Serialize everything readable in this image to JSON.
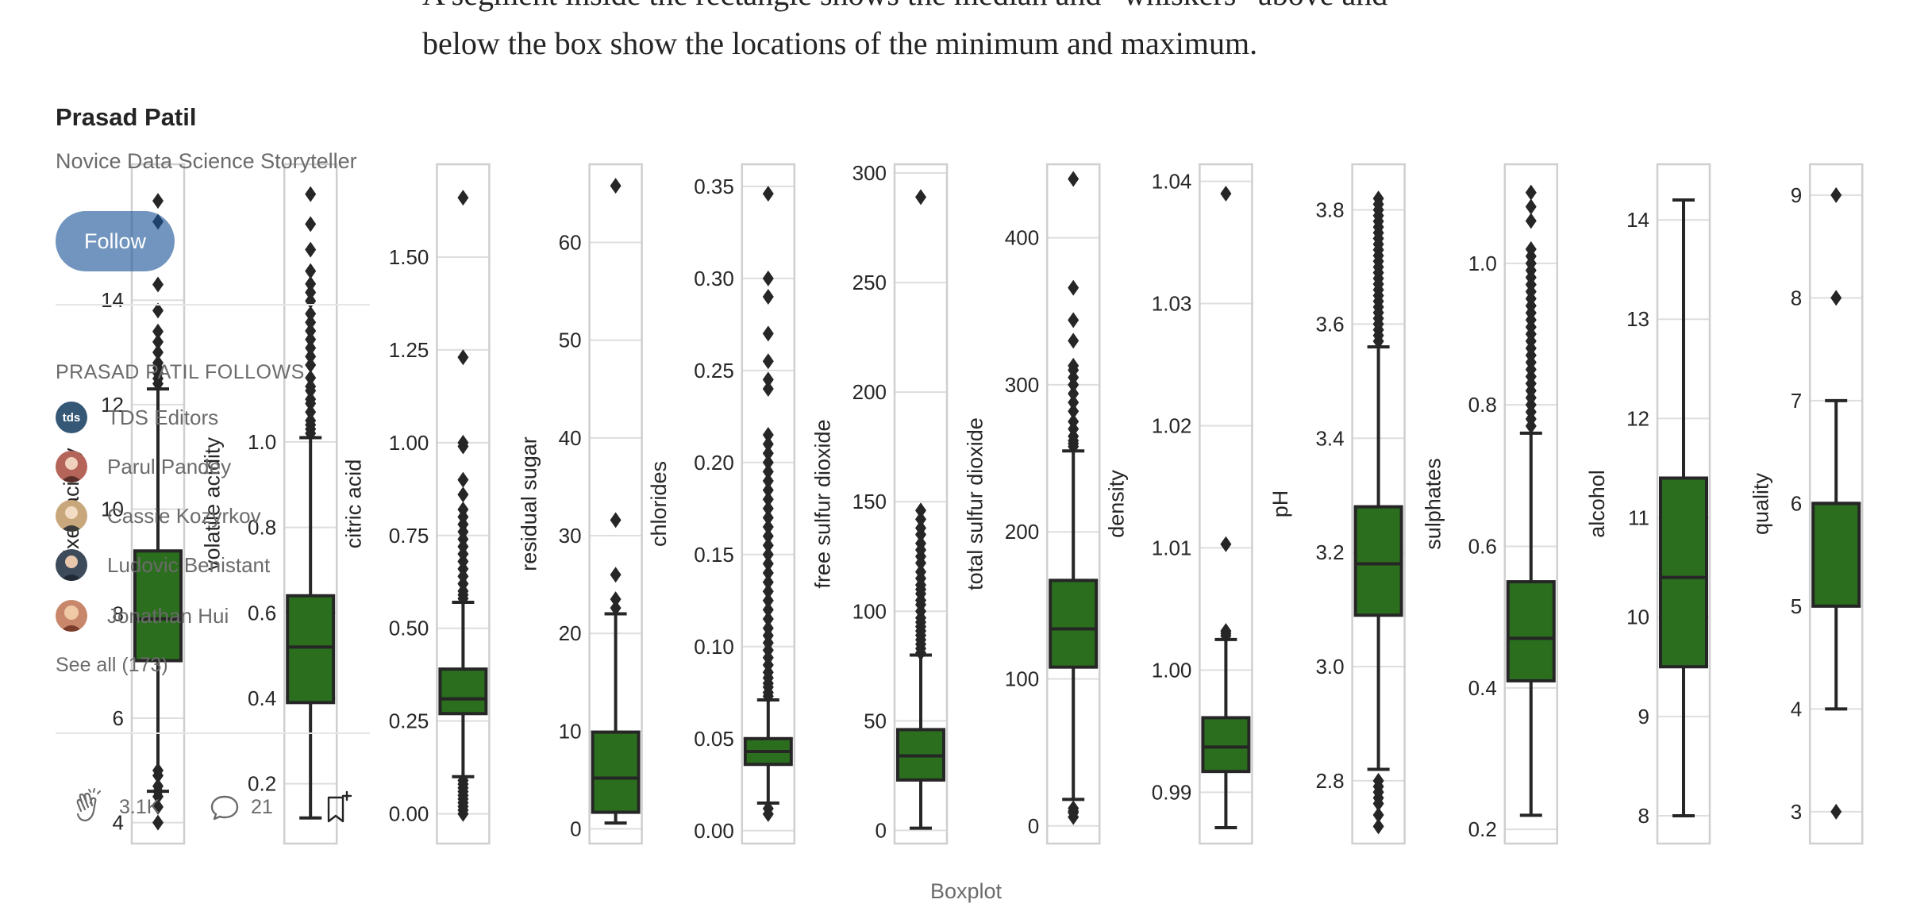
{
  "article": {
    "line1": "A segment inside the rectangle shows the median and “whiskers” above and",
    "line2": "below the box show the locations of the minimum and maximum."
  },
  "figure": {
    "caption": "Boxplot"
  },
  "sidebar": {
    "author_name": "Prasad Patil",
    "author_bio": "Novice Data Science Storyteller",
    "follow_label": "Follow",
    "follows_heading": "PRASAD PATIL FOLLOWS",
    "follows": [
      {
        "name": "TDS Editors",
        "avatar": "tds",
        "avatar_color": "#355876"
      },
      {
        "name": "Parul Pandey",
        "avatar": "person-avatar",
        "avatar_color": "#b5645a"
      },
      {
        "name": "Cassie Kozyrkov",
        "avatar": "person-avatar",
        "avatar_color": "#c9a77c"
      },
      {
        "name": "Ludovic Benistant",
        "avatar": "person-avatar",
        "avatar_color": "#3d4a5a"
      },
      {
        "name": "Jonathan Hui",
        "avatar": "person-avatar",
        "avatar_color": "#c8876a"
      }
    ],
    "see_all": "See all (173)",
    "claps": "3.1K",
    "comments": "21"
  },
  "colors": {
    "box": "#2a6e1e",
    "frame": "#cfcfcf",
    "grid": "#dedede",
    "text": "#262626"
  },
  "chart_data": {
    "type": "boxplot",
    "title": "",
    "panels": [
      {
        "label": "fixed acidity",
        "ylim": [
          3.6,
          16.6
        ],
        "ticks": [
          4,
          6,
          8,
          10,
          12,
          14
        ],
        "q1": 7.1,
        "median": 7.9,
        "q3": 9.2,
        "whisker_low": 4.6,
        "whisker_high": 12.3,
        "outliers": [
          4.0,
          4.3,
          4.5,
          4.6,
          4.7,
          4.9,
          5.0,
          12.4,
          12.5,
          12.6,
          12.7,
          12.8,
          13.0,
          13.2,
          13.4,
          13.8,
          14.3,
          15.5,
          15.9
        ]
      },
      {
        "label": "volatile acidity",
        "ylim": [
          0.06,
          1.65
        ],
        "ticks": [
          0.2,
          0.4,
          0.6,
          0.8,
          1.0
        ],
        "q1": 0.39,
        "median": 0.52,
        "q3": 0.64,
        "whisker_low": 0.12,
        "whisker_high": 1.01,
        "outliers": [
          1.02,
          1.03,
          1.04,
          1.05,
          1.07,
          1.09,
          1.1,
          1.12,
          1.13,
          1.15,
          1.18,
          1.2,
          1.22,
          1.24,
          1.26,
          1.28,
          1.3,
          1.33,
          1.35,
          1.37,
          1.4,
          1.45,
          1.51,
          1.58
        ]
      },
      {
        "label": "citric acid",
        "ylim": [
          -0.08,
          1.75
        ],
        "ticks": [
          0.0,
          0.25,
          0.5,
          0.75,
          1.0,
          1.25,
          1.5
        ],
        "q1": 0.27,
        "median": 0.31,
        "q3": 0.39,
        "whisker_low": 0.1,
        "whisker_high": 0.57,
        "outliers": [
          0.0,
          0.01,
          0.02,
          0.03,
          0.04,
          0.05,
          0.06,
          0.07,
          0.08,
          0.09,
          0.58,
          0.59,
          0.6,
          0.62,
          0.64,
          0.66,
          0.68,
          0.7,
          0.72,
          0.74,
          0.76,
          0.78,
          0.8,
          0.82,
          0.86,
          0.9,
          0.99,
          1.0,
          1.23,
          1.66
        ]
      },
      {
        "label": "residual sugar",
        "ylim": [
          -1.5,
          68
        ],
        "ticks": [
          0,
          10,
          20,
          30,
          40,
          50,
          60
        ],
        "q1": 1.7,
        "median": 5.2,
        "q3": 9.9,
        "whisker_low": 0.6,
        "whisker_high": 22.0,
        "outliers": [
          22.6,
          23.5,
          26.0,
          31.6,
          65.8
        ]
      },
      {
        "label": "chlorides",
        "ylim": [
          -0.007,
          0.362
        ],
        "ticks": [
          0.0,
          0.05,
          0.1,
          0.15,
          0.2,
          0.25,
          0.3,
          0.35
        ],
        "q1": 0.036,
        "median": 0.043,
        "q3": 0.05,
        "whisker_low": 0.015,
        "whisker_high": 0.071,
        "outliers": [
          0.009,
          0.012,
          0.073,
          0.075,
          0.078,
          0.08,
          0.083,
          0.086,
          0.09,
          0.094,
          0.098,
          0.102,
          0.106,
          0.11,
          0.115,
          0.12,
          0.125,
          0.13,
          0.135,
          0.14,
          0.145,
          0.15,
          0.155,
          0.16,
          0.165,
          0.17,
          0.175,
          0.18,
          0.185,
          0.19,
          0.195,
          0.2,
          0.205,
          0.21,
          0.215,
          0.24,
          0.245,
          0.255,
          0.27,
          0.29,
          0.3,
          0.346
        ]
      },
      {
        "label": "free sulfur dioxide",
        "ylim": [
          -6,
          304
        ],
        "ticks": [
          0,
          50,
          100,
          150,
          200,
          250,
          300
        ],
        "q1": 23.0,
        "median": 34.0,
        "q3": 46.0,
        "whisker_low": 1.0,
        "whisker_high": 80.0,
        "outliers": [
          81,
          83,
          85,
          87,
          89,
          91,
          93,
          95,
          97,
          100,
          103,
          105,
          108,
          110,
          112,
          115,
          118,
          122,
          125,
          128,
          131,
          135,
          138,
          142,
          146,
          289
        ]
      },
      {
        "label": "total sulfur dioxide",
        "ylim": [
          -12,
          450
        ],
        "ticks": [
          0,
          100,
          200,
          300,
          400
        ],
        "q1": 108.0,
        "median": 134.0,
        "q3": 167.0,
        "whisker_low": 18.0,
        "whisker_high": 255.0,
        "outliers": [
          6,
          9,
          10,
          12,
          258,
          260,
          262,
          265,
          270,
          275,
          282,
          288,
          294,
          300,
          305,
          310,
          313,
          330,
          344,
          366,
          440
        ]
      },
      {
        "label": "density",
        "ylim": [
          0.9858,
          1.0414
        ],
        "ticks": [
          0.99,
          1.0,
          1.01,
          1.02,
          1.03,
          1.04
        ],
        "q1": 0.9917,
        "median": 0.9937,
        "q3": 0.9961,
        "whisker_low": 0.9871,
        "whisker_high": 1.0025,
        "outliers": [
          1.0028,
          1.003,
          1.0032,
          1.0103,
          1.039
        ]
      },
      {
        "label": "pH",
        "ylim": [
          2.69,
          3.88
        ],
        "ticks": [
          2.8,
          3.0,
          3.2,
          3.4,
          3.6,
          3.8
        ],
        "q1": 3.09,
        "median": 3.18,
        "q3": 3.28,
        "whisker_low": 2.82,
        "whisker_high": 3.56,
        "outliers": [
          2.72,
          2.74,
          2.76,
          2.77,
          2.78,
          2.79,
          2.8,
          3.57,
          3.58,
          3.59,
          3.6,
          3.61,
          3.62,
          3.63,
          3.64,
          3.65,
          3.66,
          3.67,
          3.68,
          3.69,
          3.7,
          3.71,
          3.72,
          3.73,
          3.74,
          3.75,
          3.76,
          3.77,
          3.78,
          3.79,
          3.8,
          3.81,
          3.82
        ]
      },
      {
        "label": "sulphates",
        "ylim": [
          0.18,
          1.14
        ],
        "ticks": [
          0.2,
          0.4,
          0.6,
          0.8,
          1.0
        ],
        "q1": 0.41,
        "median": 0.47,
        "q3": 0.55,
        "whisker_low": 0.22,
        "whisker_high": 0.76,
        "outliers": [
          0.77,
          0.78,
          0.79,
          0.8,
          0.81,
          0.82,
          0.83,
          0.84,
          0.85,
          0.86,
          0.87,
          0.88,
          0.89,
          0.9,
          0.91,
          0.92,
          0.93,
          0.94,
          0.95,
          0.96,
          0.97,
          0.98,
          0.99,
          1.0,
          1.01,
          1.02,
          1.06,
          1.08,
          1.1
        ]
      },
      {
        "label": "alcohol",
        "ylim": [
          7.72,
          14.56
        ],
        "ticks": [
          8,
          9,
          10,
          11,
          12,
          13,
          14
        ],
        "q1": 9.5,
        "median": 10.4,
        "q3": 11.4,
        "whisker_low": 8.0,
        "whisker_high": 14.2,
        "outliers": []
      },
      {
        "label": "quality",
        "ylim": [
          2.69,
          9.3
        ],
        "ticks": [
          3,
          4,
          5,
          6,
          7,
          8,
          9
        ],
        "q1": 5.0,
        "median": 6.0,
        "q3": 6.0,
        "whisker_low": 4.0,
        "whisker_high": 7.0,
        "outliers": [
          3,
          8,
          9
        ]
      }
    ]
  }
}
